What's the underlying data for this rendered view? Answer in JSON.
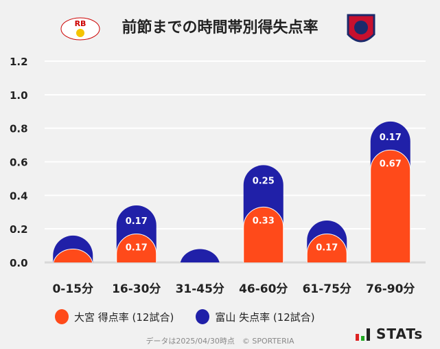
{
  "title": "前節までの時間帯別得失点率",
  "logos": {
    "left": "RB",
    "right": "富山"
  },
  "colors": {
    "orange": "#ff4a1a",
    "blue": "#2020a8"
  },
  "chart_data": {
    "type": "bar",
    "stacked": true,
    "categories": [
      "0-15分",
      "16-30分",
      "31-45分",
      "46-60分",
      "61-75分",
      "76-90分"
    ],
    "series": [
      {
        "name": "大宮 得点率 (12試合)",
        "color": "#ff4a1a",
        "values": [
          0.08,
          0.17,
          0,
          0.33,
          0.17,
          0.67
        ],
        "labels": [
          "",
          "0.17",
          "",
          "0.33",
          "0.17",
          "0.67"
        ]
      },
      {
        "name": "富山 失点率 (12試合)",
        "color": "#2020a8",
        "values": [
          0.08,
          0.17,
          0.08,
          0.25,
          0.08,
          0.17
        ],
        "labels": [
          "",
          "0.17",
          "",
          "0.25",
          "",
          "0.17"
        ]
      }
    ],
    "ylim": [
      0,
      1.2
    ],
    "yticks": [
      "0.0",
      "0.2",
      "0.4",
      "0.6",
      "0.8",
      "1.0",
      "1.2"
    ],
    "grid": true,
    "legend": "bottom"
  },
  "footer": "データは2025/04/30時点　© SPORTERIA",
  "brand": "STATs"
}
